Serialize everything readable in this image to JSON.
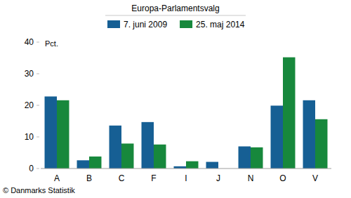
{
  "chart_data": {
    "type": "bar",
    "title": "Europa-Parlamentsvalg",
    "y_label": "Pct.",
    "annotations": [
      "© Danmarks Statistik"
    ],
    "categories": [
      "A",
      "B",
      "C",
      "F",
      "I",
      "J",
      "N",
      "O",
      "V"
    ],
    "series": [
      {
        "name": "7. juni 2009",
        "color": "#165f94",
        "values": [
          22.8,
          2.6,
          13.6,
          14.7,
          0.7,
          2.1,
          7.0,
          19.9,
          21.6
        ]
      },
      {
        "name": "25. maj 2014",
        "color": "#17883c",
        "values": [
          21.6,
          3.8,
          7.9,
          7.6,
          2.3,
          null,
          6.7,
          35.2,
          15.6
        ]
      }
    ],
    "ylim": [
      0,
      40
    ],
    "yticks": [
      0,
      10,
      20,
      30,
      40
    ],
    "grid": false,
    "legend": "top"
  }
}
